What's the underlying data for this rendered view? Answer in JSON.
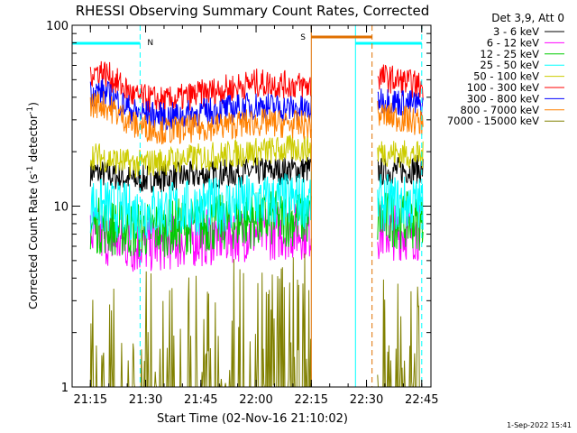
{
  "chart_data": {
    "type": "line",
    "title": "RHESSI Observing Summary Count Rates, Corrected",
    "xlabel": "Start Time (02-Nov-16 21:10:02)",
    "ylabel_main": "Corrected Count Rate (s",
    "ylabel_sup1": "-1",
    "ylabel_mid": " detector",
    "ylabel_sup2": "-1",
    "ylabel_end": ")",
    "yscale": "log",
    "ylim": [
      1,
      100
    ],
    "xlim": [
      "21:10:02",
      "22:47:30"
    ],
    "x_ticks": [
      "21:15",
      "21:30",
      "21:45",
      "22:00",
      "22:15",
      "22:30",
      "22:45"
    ],
    "y_ticks": [
      "1",
      "10",
      "100"
    ],
    "legend_header": "Det 3,9, Att 0",
    "legend_placement": "right",
    "timestamp": "1-Sep-2022 15:41",
    "data_gaps": [
      [
        "22:15",
        "22:33"
      ]
    ],
    "series": [
      {
        "name": "3 - 6 keV",
        "color": "#000000",
        "values": [
          [
            21.17,
            16
          ],
          [
            21.45,
            14
          ],
          [
            22.0,
            15.5
          ],
          [
            22.24,
            16
          ],
          [
            22.56,
            15.5
          ],
          [
            22.75,
            16
          ]
        ]
      },
      {
        "name": "6 - 12 keV",
        "color": "#ff00ff",
        "values": [
          [
            21.17,
            7.5
          ],
          [
            21.45,
            6.0
          ],
          [
            22.0,
            7.2
          ],
          [
            22.24,
            7.3
          ],
          [
            22.56,
            7.2
          ],
          [
            22.75,
            7.2
          ]
        ]
      },
      {
        "name": "12 - 25 keV",
        "color": "#00cc00",
        "values": [
          [
            21.17,
            8.2
          ],
          [
            21.45,
            7.3
          ],
          [
            22.0,
            8.4
          ],
          [
            22.24,
            8.6
          ],
          [
            22.56,
            8.5
          ],
          [
            22.75,
            8.2
          ]
        ]
      },
      {
        "name": "25 - 50 keV",
        "color": "#00ffff",
        "values": [
          [
            21.17,
            10.5
          ],
          [
            21.45,
            9.2
          ],
          [
            22.0,
            10.5
          ],
          [
            22.24,
            10.8
          ],
          [
            22.56,
            10.5
          ],
          [
            22.75,
            10.2
          ]
        ]
      },
      {
        "name": "50 - 100 keV",
        "color": "#cccc00",
        "values": [
          [
            21.17,
            20
          ],
          [
            21.45,
            17
          ],
          [
            22.0,
            20
          ],
          [
            22.24,
            21
          ],
          [
            22.56,
            20
          ],
          [
            22.75,
            19
          ]
        ]
      },
      {
        "name": "100 - 300 keV",
        "color": "#ff0000",
        "values": [
          [
            21.17,
            53
          ],
          [
            21.3,
            56
          ],
          [
            21.45,
            40
          ],
          [
            21.6,
            38
          ],
          [
            22.0,
            48
          ],
          [
            22.24,
            46
          ],
          [
            22.56,
            52
          ],
          [
            22.75,
            46
          ]
        ]
      },
      {
        "name": "300 - 800 keV",
        "color": "#0000ff",
        "values": [
          [
            21.17,
            41
          ],
          [
            21.3,
            43
          ],
          [
            21.45,
            33
          ],
          [
            21.6,
            31
          ],
          [
            22.0,
            36
          ],
          [
            22.24,
            34
          ],
          [
            22.56,
            39
          ],
          [
            22.75,
            36
          ]
        ]
      },
      {
        "name": "800 - 7000 keV",
        "color": "#ff8000",
        "values": [
          [
            21.17,
            35
          ],
          [
            21.3,
            37
          ],
          [
            21.45,
            28
          ],
          [
            21.6,
            26
          ],
          [
            22.0,
            29
          ],
          [
            22.24,
            28
          ],
          [
            22.56,
            32
          ],
          [
            22.75,
            29
          ]
        ]
      },
      {
        "name": "7000 - 15000 keV",
        "color": "#808000",
        "values": [
          [
            21.17,
            1.4
          ],
          [
            21.45,
            1.2
          ],
          [
            22.0,
            1.5
          ],
          [
            22.24,
            1.6
          ],
          [
            22.56,
            1.2
          ],
          [
            22.75,
            1.2
          ]
        ]
      }
    ],
    "annotations": [
      {
        "label": "N",
        "color": "#00ffff",
        "type": "night",
        "start": "21:10:02",
        "end": "21:28:30"
      },
      {
        "label": "",
        "color": "#00ffff",
        "type": "night",
        "start": "22:27:00",
        "end": "22:45:00"
      },
      {
        "label": "S",
        "color": "#e07000",
        "type": "saa",
        "start": "22:15:00",
        "end": "22:31:30"
      }
    ]
  }
}
